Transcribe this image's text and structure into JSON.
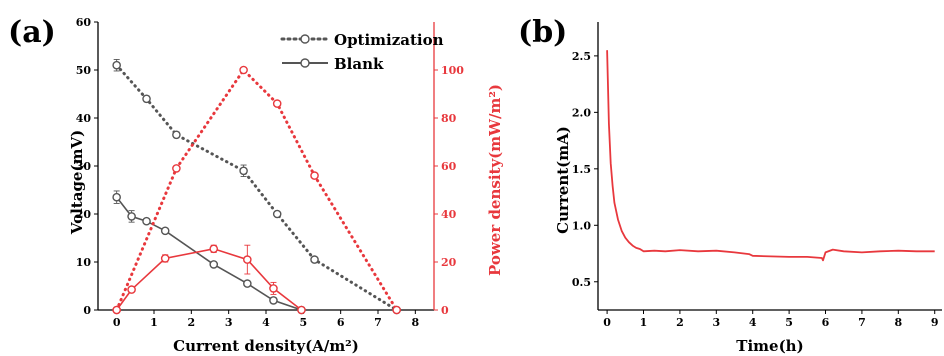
{
  "chart_data": [
    {
      "panel_label": "(a)",
      "type": "line",
      "xlabel": "Current density(A/m²)",
      "ylabel_left": "Voltage(mV)",
      "ylabel_right": "Power density(mW/m²)",
      "xlim": [
        -0.5,
        8.5
      ],
      "xticks": [
        0,
        1,
        2,
        3,
        4,
        5,
        6,
        7,
        8
      ],
      "ylim_left": [
        0,
        60
      ],
      "yticks_left": [
        0,
        10,
        20,
        30,
        40,
        50,
        60
      ],
      "ylim_right": [
        0,
        120
      ],
      "yticks_right": [
        0,
        20,
        40,
        60,
        80,
        100
      ],
      "legend_position": "top-right",
      "colors": {
        "left_axis": "#000000",
        "right_axis": "#e8383d",
        "voltage": "#555555",
        "power": "#e8383d"
      },
      "series": [
        {
          "name": "Optimization",
          "axis": "left",
          "style": "dotted",
          "x": [
            0,
            0.8,
            1.6,
            3.4,
            4.3,
            5.3,
            7.5
          ],
          "y": [
            51,
            44,
            36.5,
            29,
            20,
            10.5,
            0
          ],
          "err": [
            1.2,
            0.6,
            0.6,
            1.2,
            0.5,
            0.4,
            0
          ]
        },
        {
          "name": "Blank",
          "axis": "left",
          "style": "solid",
          "x": [
            0,
            0.4,
            0.8,
            1.3,
            2.6,
            3.5,
            4.2,
            4.95
          ],
          "y": [
            23.5,
            19.5,
            18.5,
            16.5,
            9.5,
            5.5,
            2,
            0
          ],
          "err": [
            1.3,
            1.2,
            0.5,
            0.5,
            0.4,
            0.5,
            0.6,
            0
          ]
        },
        {
          "name": "",
          "axis": "right",
          "style": "dotted",
          "x": [
            0,
            1.6,
            3.4,
            4.3,
            5.3,
            7.5
          ],
          "y": [
            0,
            59,
            100,
            86,
            56,
            0
          ]
        },
        {
          "name": "",
          "axis": "right",
          "style": "solid",
          "x": [
            0,
            0.4,
            1.3,
            2.6,
            3.5,
            4.2,
            4.95
          ],
          "y": [
            0,
            8.5,
            21.5,
            25.5,
            21,
            9,
            0
          ],
          "err": [
            0,
            1,
            1.5,
            1.5,
            6,
            2.5,
            0
          ]
        }
      ]
    },
    {
      "panel_label": "(b)",
      "type": "line",
      "xlabel": "Time(h)",
      "ylabel": "Current(mA)",
      "xlim": [
        -0.25,
        9.2
      ],
      "xticks": [
        0,
        1,
        2,
        3,
        4,
        5,
        6,
        7,
        8,
        9
      ],
      "ylim": [
        0.25,
        2.8
      ],
      "yticks": [
        0.5,
        1.0,
        1.5,
        2.0,
        2.5
      ],
      "ytick_labels": [
        "0.5",
        "1.0",
        "1.5",
        "2.0",
        "2.5"
      ],
      "colors": {
        "line": "#e8383d"
      },
      "series": [
        {
          "name": "",
          "x": [
            0,
            0.02,
            0.05,
            0.1,
            0.15,
            0.2,
            0.3,
            0.4,
            0.5,
            0.6,
            0.7,
            0.8,
            0.9,
            1.0,
            1.3,
            1.6,
            2.0,
            2.5,
            3.0,
            3.5,
            3.9,
            4.0,
            4.5,
            5.0,
            5.5,
            5.9,
            5.93,
            6.0,
            6.2,
            6.5,
            7.0,
            7.5,
            8.0,
            8.5,
            9.0
          ],
          "y": [
            2.55,
            2.3,
            1.9,
            1.55,
            1.35,
            1.2,
            1.05,
            0.95,
            0.89,
            0.85,
            0.82,
            0.8,
            0.79,
            0.77,
            0.775,
            0.77,
            0.78,
            0.77,
            0.775,
            0.76,
            0.745,
            0.73,
            0.725,
            0.72,
            0.72,
            0.71,
            0.69,
            0.76,
            0.785,
            0.77,
            0.76,
            0.77,
            0.775,
            0.77,
            0.77
          ]
        }
      ]
    }
  ]
}
